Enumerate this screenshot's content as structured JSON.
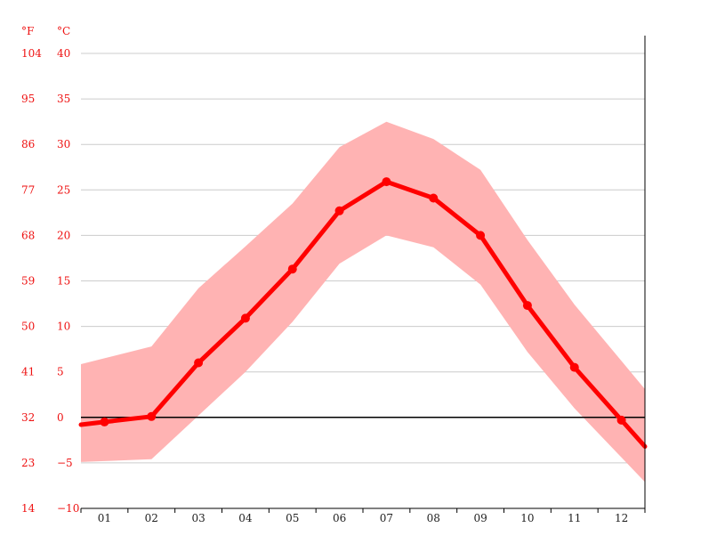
{
  "chart_data": {
    "type": "line",
    "title": "",
    "xlabel": "",
    "ylabel": "",
    "units": {
      "fahrenheit": "°F",
      "celsius": "°C"
    },
    "categories": [
      "01",
      "02",
      "03",
      "04",
      "05",
      "06",
      "07",
      "08",
      "09",
      "10",
      "11",
      "12"
    ],
    "y_ticks_c": [
      "40",
      "35",
      "30",
      "25",
      "20",
      "15",
      "10",
      "5",
      "0",
      "−5",
      "−10"
    ],
    "y_ticks_f": [
      "104",
      "95",
      "86",
      "77",
      "68",
      "59",
      "50",
      "41",
      "32",
      "23",
      "14"
    ],
    "ylim": [
      -10,
      40
    ],
    "grid": true,
    "series": [
      {
        "role": "mean",
        "values": [
          -0.5,
          0.1,
          6.0,
          10.9,
          16.3,
          22.7,
          25.9,
          24.1,
          20.0,
          12.3,
          5.5,
          -0.3
        ]
      },
      {
        "role": "max",
        "values": [
          6.5,
          7.8,
          14.2,
          18.8,
          23.5,
          29.7,
          32.5,
          30.6,
          27.2,
          19.5,
          12.4,
          6.2
        ]
      },
      {
        "role": "min",
        "values": [
          -4.8,
          -4.6,
          0.2,
          5.0,
          10.5,
          16.9,
          20.0,
          18.7,
          14.6,
          7.2,
          1.0,
          -4.4
        ]
      }
    ],
    "colors": {
      "mean": "#ff0000",
      "band": "#ffb3b3",
      "ticks": "#ee1111"
    }
  }
}
